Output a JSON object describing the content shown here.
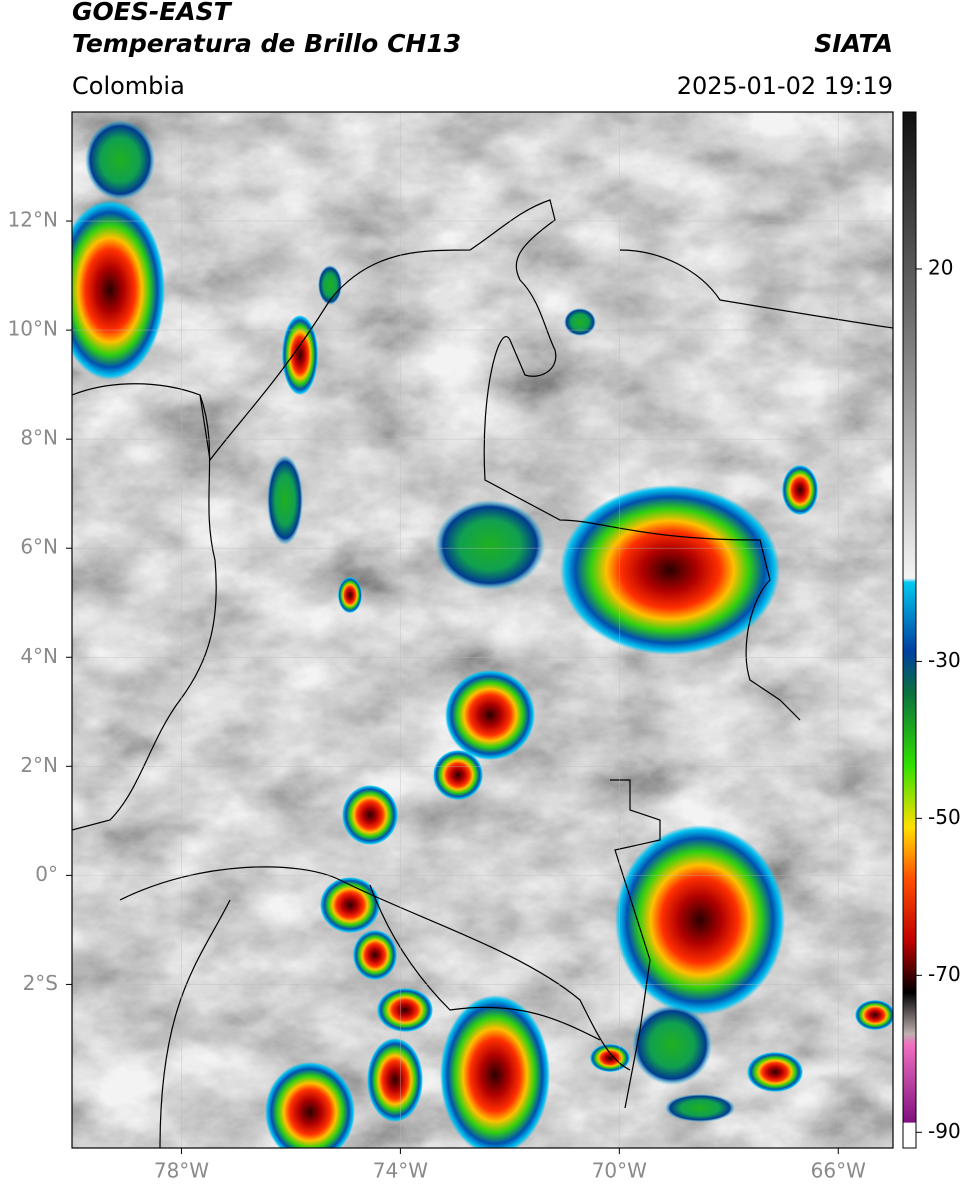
{
  "header": {
    "title": "GOES-EAST",
    "subtitle": "Temperatura de Brillo CH13",
    "source": "SIATA",
    "region": "Colombia",
    "timestamp": "2025-01-02 19:19"
  },
  "chart_data": {
    "type": "map",
    "xlim": [
      -80,
      -65
    ],
    "ylim": [
      -5,
      14
    ],
    "xticks": [
      {
        "value": -78,
        "label": "78°W"
      },
      {
        "value": -74,
        "label": "74°W"
      },
      {
        "value": -70,
        "label": "70°W"
      },
      {
        "value": -66,
        "label": "66°W"
      }
    ],
    "yticks": [
      {
        "value": 12,
        "label": "12°N"
      },
      {
        "value": 10,
        "label": "10°N"
      },
      {
        "value": 8,
        "label": "8°N"
      },
      {
        "value": 6,
        "label": "6°N"
      },
      {
        "value": 4,
        "label": "4°N"
      },
      {
        "value": 2,
        "label": "2°N"
      },
      {
        "value": 0,
        "label": "0°"
      },
      {
        "value": -2,
        "label": "2°S"
      }
    ],
    "grid": true,
    "colorbar": {
      "clim": [
        -92,
        40
      ],
      "ticks": [
        20,
        -30,
        -50,
        -70,
        -90
      ]
    }
  }
}
